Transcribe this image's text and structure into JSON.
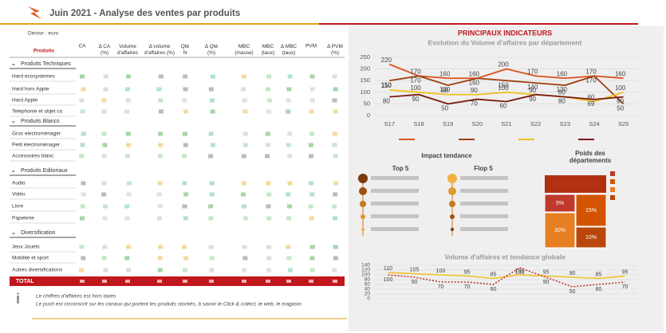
{
  "header": {
    "title": "Juin 2021 - Analyse des ventes par produits",
    "currency": "Devise : euro"
  },
  "table": {
    "columns": [
      "Produits",
      "CA",
      "Δ CA (%)",
      "Volume d'affaires",
      "Δ volume d'affaires (%)",
      "Qté N",
      "Δ Qté (%)",
      "MBC (masse)",
      "MBC (taux)",
      "Δ MBC (taux)",
      "PVM",
      "Δ PVM (%)"
    ],
    "groups": [
      {
        "name": "Produits Techniques",
        "items": [
          "Hard ecosystemes",
          "Hard hors Apple",
          "Hard Apple",
          "Telephonie et objet co"
        ]
      },
      {
        "name": "Produits Blancs",
        "items": [
          "Gros electroménager",
          "Petit électroménager",
          "Accessoires blanc"
        ]
      },
      {
        "name": "Produits Editoriaux",
        "items": [
          "Audio",
          "Vidéo",
          "Livre",
          "Papeterie"
        ]
      },
      {
        "name": "Diversification",
        "items": [
          "Jeux Jouets",
          "Mobilité et sport",
          "Autres diversifications"
        ]
      }
    ],
    "total": "TOTAL"
  },
  "notes": [
    "Le chiffres d'affaires est hors taxes",
    "Le push est circonscrit sur les canaux qui portent les produits stockés, à savoir le Click & collect, le web, le magasin."
  ],
  "panel": {
    "title": "PRINCIPAUX INDICATEURS",
    "impact_title": "Impact tendance",
    "top": "Top 5",
    "flop": "Flop 5",
    "weights_title": "Poids des départements",
    "treemap": {
      "values": [
        5,
        15,
        30,
        10
      ],
      "value_labels": [
        "5%",
        "15%",
        "30%",
        "10%"
      ],
      "colors": [
        "#c0392b",
        "#d35400",
        "#e67e22",
        "#b9470b"
      ]
    }
  },
  "chart_data": [
    {
      "type": "line",
      "title": "Evolution du Volume d'affaires par département",
      "x": [
        "S17",
        "S18",
        "S19",
        "S20",
        "S21",
        "S22",
        "S23",
        "S24",
        "S25"
      ],
      "ylim": [
        0,
        250
      ],
      "yticks": [
        0,
        50,
        100,
        150,
        200,
        250
      ],
      "series": [
        {
          "color": "#d9531e",
          "values": [
            220,
            170,
            160,
            160,
            200,
            170,
            160,
            170,
            160
          ]
        },
        {
          "color": "#a0400e",
          "values": [
            150,
            170,
            130,
            160,
            150,
            140,
            130,
            170,
            50
          ]
        },
        {
          "color": "#f0c020",
          "values": [
            110,
            100,
            90,
            90,
            100,
            90,
            80,
            60,
            100
          ]
        },
        {
          "color": "#7a1a0e",
          "values": [
            80,
            90,
            50,
            70,
            60,
            90,
            80,
            69,
            80
          ]
        }
      ]
    },
    {
      "type": "line",
      "title": "Volume d'affaires et tendance globale",
      "ylim": [
        0,
        140
      ],
      "yticks": [
        0,
        20,
        40,
        60,
        80,
        100,
        120,
        140
      ],
      "series": [
        {
          "color": "#f0c020",
          "values": [
            110,
            105,
            100,
            95,
            85,
            100,
            95,
            90,
            85,
            95
          ]
        },
        {
          "color": "#c0392b",
          "dashed": true,
          "values": [
            100,
            90,
            70,
            70,
            60,
            130,
            90,
            50,
            60,
            70
          ]
        }
      ]
    }
  ]
}
